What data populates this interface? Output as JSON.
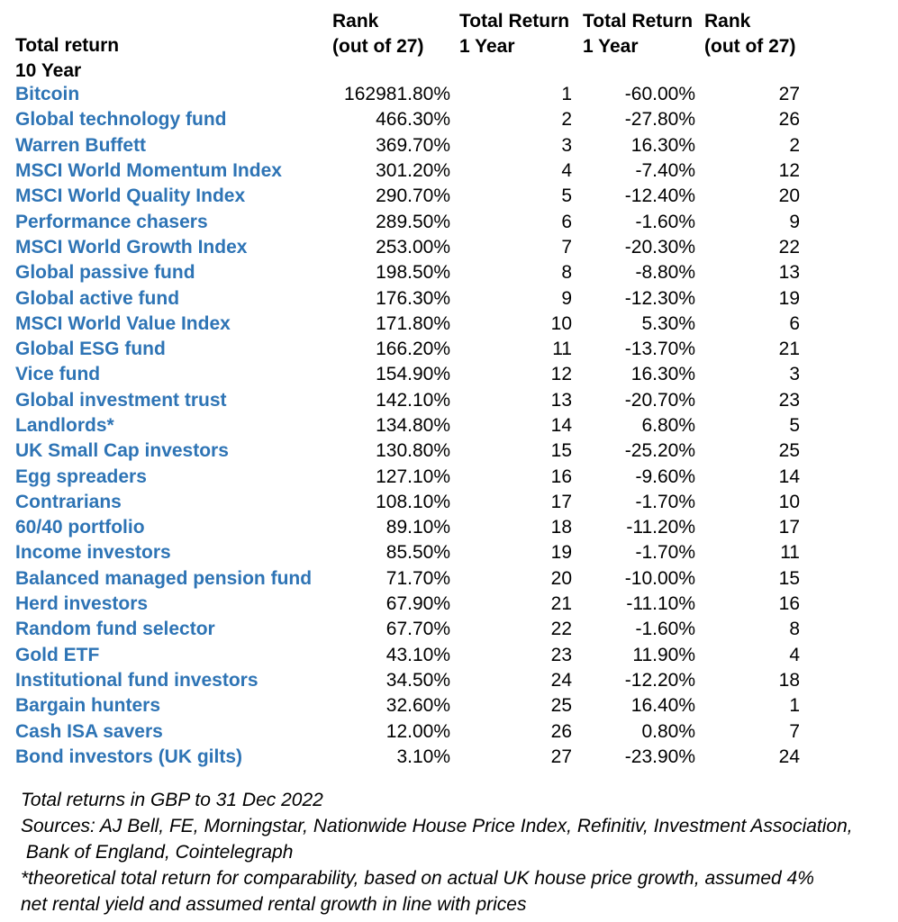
{
  "colors": {
    "label_blue": "#2E74B5",
    "text_black": "#000000",
    "background": "#ffffff"
  },
  "header": {
    "label": [
      "Total return",
      "10 Year"
    ],
    "rank10": [
      "Rank",
      "(out of 27)"
    ],
    "ret1a": [
      "Total Return",
      "1 Year"
    ],
    "ret1b": [
      "Total Return",
      "1 Year"
    ],
    "rank1": [
      "Rank",
      "(out of 27)"
    ]
  },
  "chart_data": {
    "type": "table",
    "columns": [
      "Total return 10 Year",
      "Total Return 10 Year (%)",
      "Rank (out of 27) - 10 Year",
      "Total Return 1 Year (%)",
      "Rank (out of 27) - 1 Year"
    ],
    "rows": [
      [
        "Bitcoin",
        "162981.80%",
        "1",
        "-60.00%",
        "27"
      ],
      [
        "Global technology fund",
        "466.30%",
        "2",
        "-27.80%",
        "26"
      ],
      [
        "Warren Buffett",
        "369.70%",
        "3",
        "16.30%",
        "2"
      ],
      [
        "MSCI World Momentum Index",
        "301.20%",
        "4",
        "-7.40%",
        "12"
      ],
      [
        "MSCI World Quality Index",
        "290.70%",
        "5",
        "-12.40%",
        "20"
      ],
      [
        "Performance chasers",
        "289.50%",
        "6",
        "-1.60%",
        "9"
      ],
      [
        "MSCI World Growth Index",
        "253.00%",
        "7",
        "-20.30%",
        "22"
      ],
      [
        "Global passive fund",
        "198.50%",
        "8",
        "-8.80%",
        "13"
      ],
      [
        "Global active fund",
        "176.30%",
        "9",
        "-12.30%",
        "19"
      ],
      [
        "MSCI World Value Index",
        "171.80%",
        "10",
        "5.30%",
        "6"
      ],
      [
        "Global ESG fund",
        "166.20%",
        "11",
        "-13.70%",
        "21"
      ],
      [
        "Vice fund",
        "154.90%",
        "12",
        "16.30%",
        "3"
      ],
      [
        "Global investment trust",
        "142.10%",
        "13",
        "-20.70%",
        "23"
      ],
      [
        "Landlords*",
        "134.80%",
        "14",
        "6.80%",
        "5"
      ],
      [
        "UK Small Cap investors",
        "130.80%",
        "15",
        "-25.20%",
        "25"
      ],
      [
        "Egg spreaders",
        "127.10%",
        "16",
        "-9.60%",
        "14"
      ],
      [
        "Contrarians",
        "108.10%",
        "17",
        "-1.70%",
        "10"
      ],
      [
        "60/40 portfolio",
        "89.10%",
        "18",
        "-11.20%",
        "17"
      ],
      [
        "Income investors",
        "85.50%",
        "19",
        "-1.70%",
        "11"
      ],
      [
        "Balanced managed pension fund",
        "71.70%",
        "20",
        "-10.00%",
        "15"
      ],
      [
        "Herd investors",
        "67.90%",
        "21",
        "-11.10%",
        "16"
      ],
      [
        "Random fund selector",
        "67.70%",
        "22",
        "-1.60%",
        "8"
      ],
      [
        "Gold ETF",
        "43.10%",
        "23",
        "11.90%",
        "4"
      ],
      [
        "Institutional fund investors",
        "34.50%",
        "24",
        "-12.20%",
        "18"
      ],
      [
        "Bargain hunters",
        "32.60%",
        "25",
        "16.40%",
        "1"
      ],
      [
        "Cash ISA savers",
        "12.00%",
        "26",
        "0.80%",
        "7"
      ],
      [
        "Bond investors (UK gilts)",
        "3.10%",
        "27",
        "-23.90%",
        "24"
      ]
    ]
  },
  "footer": {
    "lines": [
      "Total returns in GBP to 31 Dec 2022",
      "Sources: AJ Bell, FE, Morningstar, Nationwide House Price Index, Refinitiv, Investment Association,",
      " Bank of England, Cointelegraph",
      "*theoretical total return for comparability, based on actual UK house price growth, assumed 4%",
      "net rental yield and assumed rental growth in line with prices"
    ]
  }
}
